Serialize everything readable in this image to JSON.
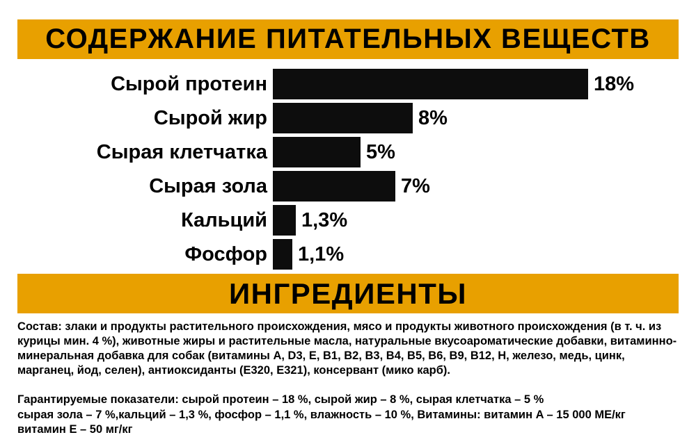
{
  "colors": {
    "accent": "#e8a000",
    "bar": "#0d0d0d",
    "background": "#ffffff",
    "text": "#000000"
  },
  "header": {
    "title": "СОДЕРЖАНИЕ ПИТАТЕЛЬНЫХ ВЕЩЕСТВ"
  },
  "chart_data": {
    "type": "bar",
    "orientation": "horizontal",
    "title": "СОДЕРЖАНИЕ ПИТАТЕЛЬНЫХ ВЕЩЕСТВ",
    "categories": [
      "Сырой протеин",
      "Сырой жир",
      "Сырая клетчатка",
      "Сырая зола",
      "Кальций",
      "Фосфор"
    ],
    "values": [
      18,
      8,
      5,
      7,
      1.3,
      1.1
    ],
    "value_labels": [
      "18%",
      "8%",
      "5%",
      "7%",
      "1,3%",
      "1,1%"
    ],
    "xlim": [
      0,
      18
    ],
    "unit": "%",
    "grid": false,
    "legend": false,
    "bar_color": "#0d0d0d"
  },
  "ingredients": {
    "title": "ИНГРЕДИЕНТЫ",
    "composition": "Состав: злаки и продукты растительного происхождения, мясо и продукты животного происхождения (в т. ч. из курицы мин. 4 %), животные жиры и растительные масла, натуральные вкусоароматические добавки, витаминно-минеральная добавка для собак (витамины A, D3, E, B1, B2, B3, B4, B5, B6, B9, B12, H, железо, медь, цинк, марганец, йод, селен), антиоксиданты (E320, E321), консервант (мико карб).",
    "guaranteed": "Гарантируемые показатели: сырой протеин – 18 %, сырой жир – 8 %, сырая клетчатка – 5 %\nсырая зола – 7 %,кальций – 1,3 %, фосфор – 1,1 %, влажность – 10 %, Витамины: витамин A – 15 000 МЕ/кг\nвитамин E – 50 мг/кг"
  }
}
